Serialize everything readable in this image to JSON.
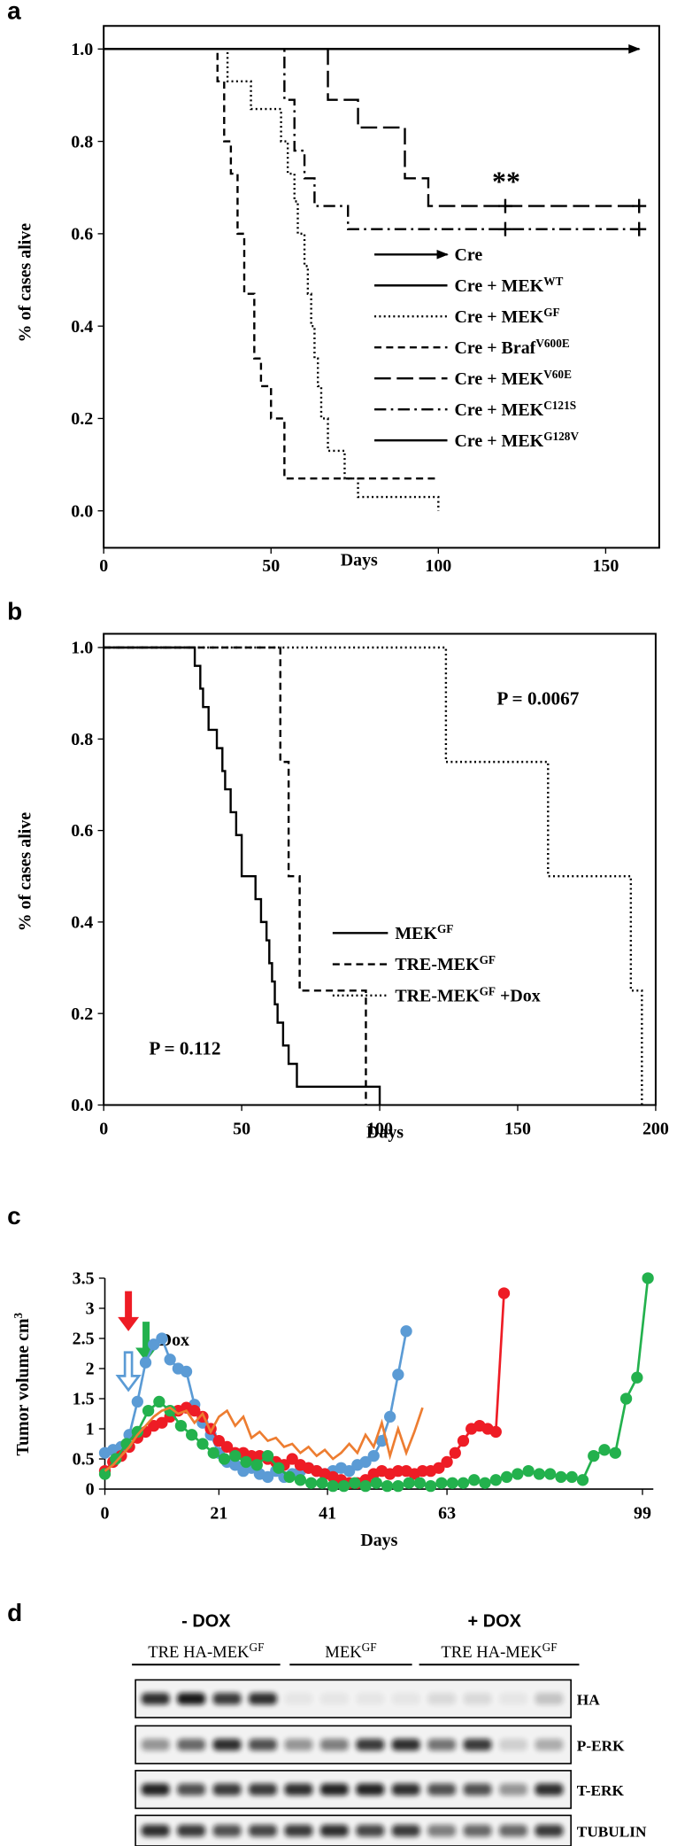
{
  "chart_data": [
    {
      "type": "step",
      "panel": "a",
      "xlabel": "Days",
      "ylabel": "% of cases alive",
      "xlim": [
        0,
        166
      ],
      "ylim": [
        -0.08,
        1.05
      ],
      "xticks": [
        0,
        50,
        100,
        150
      ],
      "yticks": [
        {
          "value": 0,
          "label": "0.0"
        },
        0.2,
        0.4,
        0.6,
        0.8,
        {
          "value": 1,
          "label": "1.0"
        }
      ],
      "frame": true,
      "legend": "lower right",
      "annotations": [
        "**"
      ],
      "series": [
        {
          "name": "Cre",
          "color": "#000000",
          "dash": "solid",
          "arrow": true,
          "x": [
            0,
            160
          ],
          "values": [
            1,
            1
          ]
        },
        {
          "name": "Cre + MEK",
          "sup": "WT",
          "color": "#000000",
          "dash": "solid",
          "x": [
            0,
            160
          ],
          "values": [
            1,
            1
          ]
        },
        {
          "name": "Cre + MEK",
          "sup": "GF",
          "color": "#000000",
          "dash": "dotted",
          "x": [
            0,
            35,
            37,
            44,
            53,
            55,
            57,
            58,
            60,
            61,
            62,
            63,
            64,
            65,
            67,
            72,
            76,
            100
          ],
          "values": [
            1,
            1,
            0.93,
            0.87,
            0.8,
            0.73,
            0.67,
            0.6,
            0.53,
            0.47,
            0.4,
            0.33,
            0.27,
            0.2,
            0.13,
            0.07,
            0.03,
            0
          ]
        },
        {
          "name": "Cre + Braf",
          "sup": "V600E",
          "color": "#000000",
          "dash": "dashed",
          "x": [
            0,
            34,
            36,
            38,
            40,
            42,
            45,
            47,
            50,
            54,
            100
          ],
          "values": [
            1,
            0.93,
            0.8,
            0.73,
            0.6,
            0.47,
            0.33,
            0.27,
            0.2,
            0.07,
            0.07
          ]
        },
        {
          "name": "Cre + MEK",
          "sup": "V60E",
          "color": "#000000",
          "dash": "longdash",
          "x": [
            0,
            67,
            76,
            90,
            97,
            160
          ],
          "values": [
            1,
            0.89,
            0.83,
            0.72,
            0.66,
            0.66
          ],
          "censored_x": [
            120,
            160
          ]
        },
        {
          "name": "Cre + MEK",
          "sup": "C121S",
          "color": "#000000",
          "dash": "dashdot",
          "x": [
            0,
            54,
            57,
            60,
            63,
            73,
            160
          ],
          "values": [
            1,
            0.89,
            0.78,
            0.72,
            0.66,
            0.61,
            0.61
          ],
          "censored_x": [
            120,
            160
          ]
        },
        {
          "name": "Cre + MEK",
          "sup": "G128V",
          "color": "#000000",
          "dash": "solid",
          "x": [
            0,
            160
          ],
          "values": [
            1,
            1
          ]
        }
      ]
    },
    {
      "type": "step",
      "panel": "b",
      "xlabel": "Days",
      "ylabel": "% of cases alive",
      "xlim": [
        0,
        200
      ],
      "ylim": [
        0,
        1.03
      ],
      "xticks": [
        0,
        50,
        100,
        150,
        200
      ],
      "yticks": [
        {
          "value": 0,
          "label": "0.0"
        },
        0.2,
        0.4,
        0.6,
        0.8,
        {
          "value": 1,
          "label": "1.0"
        }
      ],
      "frame": true,
      "legend": "center",
      "annotations": [
        "P = 0.0067",
        "P = 0.112"
      ],
      "series": [
        {
          "name": "MEK",
          "sup": "GF",
          "color": "#000000",
          "dash": "solid",
          "x": [
            0,
            33,
            35,
            36,
            38,
            41,
            43,
            44,
            46,
            48,
            50,
            55,
            57,
            59,
            60,
            61,
            62,
            63,
            65,
            67,
            70,
            73,
            100
          ],
          "values": [
            1,
            0.96,
            0.91,
            0.87,
            0.82,
            0.78,
            0.73,
            0.69,
            0.64,
            0.59,
            0.5,
            0.45,
            0.4,
            0.36,
            0.31,
            0.27,
            0.22,
            0.18,
            0.13,
            0.09,
            0.04,
            0.04,
            0
          ]
        },
        {
          "name": "TRE-MEK",
          "sup": "GF",
          "color": "#000000",
          "dash": "dashed",
          "x": [
            0,
            64,
            67,
            71,
            95
          ],
          "values": [
            1,
            0.75,
            0.5,
            0.25,
            0
          ]
        },
        {
          "name": "TRE-MEK",
          "sup": "GF",
          "suffix": " +Dox",
          "color": "#000000",
          "dash": "dotted",
          "x": [
            0,
            124,
            161,
            191,
            195
          ],
          "values": [
            1,
            0.75,
            0.5,
            0.25,
            0
          ]
        }
      ]
    },
    {
      "type": "line",
      "panel": "c",
      "xlabel": "Days",
      "ylabel": "Tumor volume cm",
      "ylabel_sup": "3",
      "arrow_label": "Dox",
      "xlim": [
        0,
        101
      ],
      "ylim": [
        0,
        3.5
      ],
      "xticks": [
        0,
        21,
        41,
        63,
        99
      ],
      "yticks": [
        0,
        0.5,
        1,
        1.5,
        2,
        2.5,
        3,
        3.5
      ],
      "frame": false,
      "series": [
        {
          "color": "#5b9bd5",
          "marker": true,
          "x": [
            0,
            1.5,
            3,
            4.5,
            6,
            7.5,
            9,
            10.5,
            12,
            13.5,
            15,
            16.5,
            18,
            19.5,
            21,
            22.5,
            24,
            25.5,
            27,
            28.5,
            30,
            31.5,
            33,
            34.5,
            36,
            37.5,
            39,
            40.5,
            42,
            43.5,
            45,
            46.5,
            48,
            49.5,
            51,
            52.5,
            54,
            55.5
          ],
          "values": [
            0.6,
            0.65,
            0.7,
            0.9,
            1.45,
            2.1,
            2.4,
            2.5,
            2.15,
            2.0,
            1.95,
            1.4,
            1.1,
            0.9,
            0.6,
            0.45,
            0.4,
            0.3,
            0.35,
            0.25,
            0.2,
            0.3,
            0.2,
            0.25,
            0.3,
            0.35,
            0.3,
            0.25,
            0.3,
            0.35,
            0.3,
            0.4,
            0.45,
            0.55,
            0.8,
            1.2,
            1.9,
            2.62
          ]
        },
        {
          "color": "#ee1c25",
          "marker": true,
          "x": [
            0,
            1.5,
            3,
            4.5,
            6,
            7.5,
            9,
            10.5,
            12,
            13.5,
            15,
            16.5,
            18,
            19.5,
            21,
            22.5,
            24,
            25.5,
            27,
            28.5,
            30,
            31.5,
            33,
            34.5,
            36,
            37.5,
            39,
            40.5,
            42,
            43.5,
            45,
            46.5,
            48,
            49.5,
            51,
            52.5,
            54,
            55.5,
            57,
            58.5,
            60,
            61.5,
            63,
            64.5,
            66,
            67.5,
            69,
            70.5,
            72,
            73.5
          ],
          "values": [
            0.3,
            0.45,
            0.55,
            0.7,
            0.85,
            0.95,
            1.05,
            1.1,
            1.2,
            1.3,
            1.35,
            1.3,
            1.2,
            1.0,
            0.8,
            0.7,
            0.6,
            0.6,
            0.55,
            0.55,
            0.5,
            0.45,
            0.4,
            0.5,
            0.4,
            0.35,
            0.3,
            0.25,
            0.2,
            0.15,
            0.1,
            0.1,
            0.15,
            0.25,
            0.3,
            0.25,
            0.3,
            0.3,
            0.25,
            0.3,
            0.3,
            0.35,
            0.45,
            0.6,
            0.8,
            1.0,
            1.05,
            1.0,
            0.95,
            3.25
          ]
        },
        {
          "color": "#23b14d",
          "marker": true,
          "x": [
            0,
            2,
            4,
            6,
            8,
            10,
            12,
            14,
            16,
            18,
            20,
            22,
            24,
            26,
            28,
            30,
            32,
            34,
            36,
            38,
            40,
            42,
            44,
            46,
            48,
            50,
            52,
            54,
            56,
            58,
            60,
            62,
            64,
            66,
            68,
            70,
            72,
            74,
            76,
            78,
            80,
            82,
            84,
            86,
            88,
            90,
            92,
            94,
            96,
            98,
            100
          ],
          "values": [
            0.25,
            0.5,
            0.75,
            0.95,
            1.3,
            1.45,
            1.3,
            1.05,
            0.9,
            0.75,
            0.6,
            0.5,
            0.55,
            0.45,
            0.4,
            0.55,
            0.35,
            0.2,
            0.15,
            0.1,
            0.1,
            0.05,
            0.05,
            0.1,
            0.05,
            0.1,
            0.05,
            0.05,
            0.1,
            0.1,
            0.05,
            0.1,
            0.1,
            0.1,
            0.15,
            0.1,
            0.15,
            0.2,
            0.25,
            0.3,
            0.25,
            0.25,
            0.2,
            0.2,
            0.15,
            0.55,
            0.65,
            0.6,
            1.5,
            1.85,
            3.5
          ]
        },
        {
          "color": "#ed7d31",
          "marker": false,
          "x": [
            0,
            1.5,
            3,
            4.5,
            6,
            7.5,
            9,
            10.5,
            12,
            13.5,
            15,
            16.5,
            18,
            19.5,
            21,
            22.5,
            24,
            25.5,
            27,
            28.5,
            30,
            31.5,
            33,
            34.5,
            36,
            37.5,
            39,
            40.5,
            42,
            43.5,
            45,
            46.5,
            48,
            49.5,
            51,
            52.5,
            54,
            55.5,
            57,
            58.5
          ],
          "values": [
            0.3,
            0.4,
            0.55,
            0.7,
            0.9,
            1.05,
            1.2,
            1.3,
            1.35,
            1.25,
            1.3,
            1.1,
            1.25,
            0.95,
            1.2,
            1.3,
            1.05,
            1.2,
            0.85,
            0.95,
            0.8,
            0.85,
            0.7,
            0.75,
            0.6,
            0.7,
            0.55,
            0.65,
            0.5,
            0.6,
            0.75,
            0.6,
            0.9,
            0.7,
            1.1,
            0.55,
            1.0,
            0.6,
            0.95,
            1.35
          ]
        }
      ]
    }
  ],
  "blot": {
    "panel": "d",
    "conditions": [
      "- DOX",
      "+ DOX"
    ],
    "groups": [
      {
        "name": "TRE HA-MEK",
        "sup": "GF"
      },
      {
        "name": "MEK",
        "sup": "GF"
      },
      {
        "name": "TRE HA-MEK",
        "sup": "GF"
      }
    ],
    "rows": [
      "HA",
      "P-ERK",
      "T-ERK",
      "TUBULIN"
    ]
  }
}
